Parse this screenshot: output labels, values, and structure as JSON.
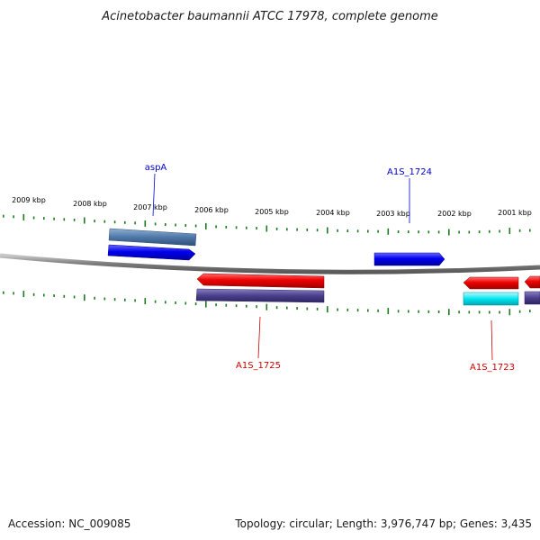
{
  "title": "Acinetobacter baumannii ATCC 17978, complete genome",
  "scale_labels": [
    "2009 kbp",
    "2008 kbp",
    "2007 kbp",
    "2006 kbp",
    "2005 kbp",
    "2004 kbp",
    "2003 kbp",
    "2002 kbp",
    "2001 kbp"
  ],
  "gene_labels": [
    {
      "name": "aspA",
      "color": "#0000cc"
    },
    {
      "name": "A1S_1724",
      "color": "#0000cc"
    },
    {
      "name": "A1S_1725",
      "color": "#cc0000"
    },
    {
      "name": "A1S_1723",
      "color": "#cc0000"
    }
  ],
  "colors": {
    "forward_cds": "#0000ee",
    "reverse_cds": "#ee0000",
    "forward_feature": "#4f78a8",
    "reverse_feature": "#4a3f8c",
    "rna_feature": "#00e5ee",
    "backbone": "#808080",
    "ticks": "#1e7a1e"
  },
  "footer": {
    "accession": "Accession: NC_009085",
    "summary": "Topology: circular; Length: 3,976,747 bp; Genes: 3,435"
  }
}
